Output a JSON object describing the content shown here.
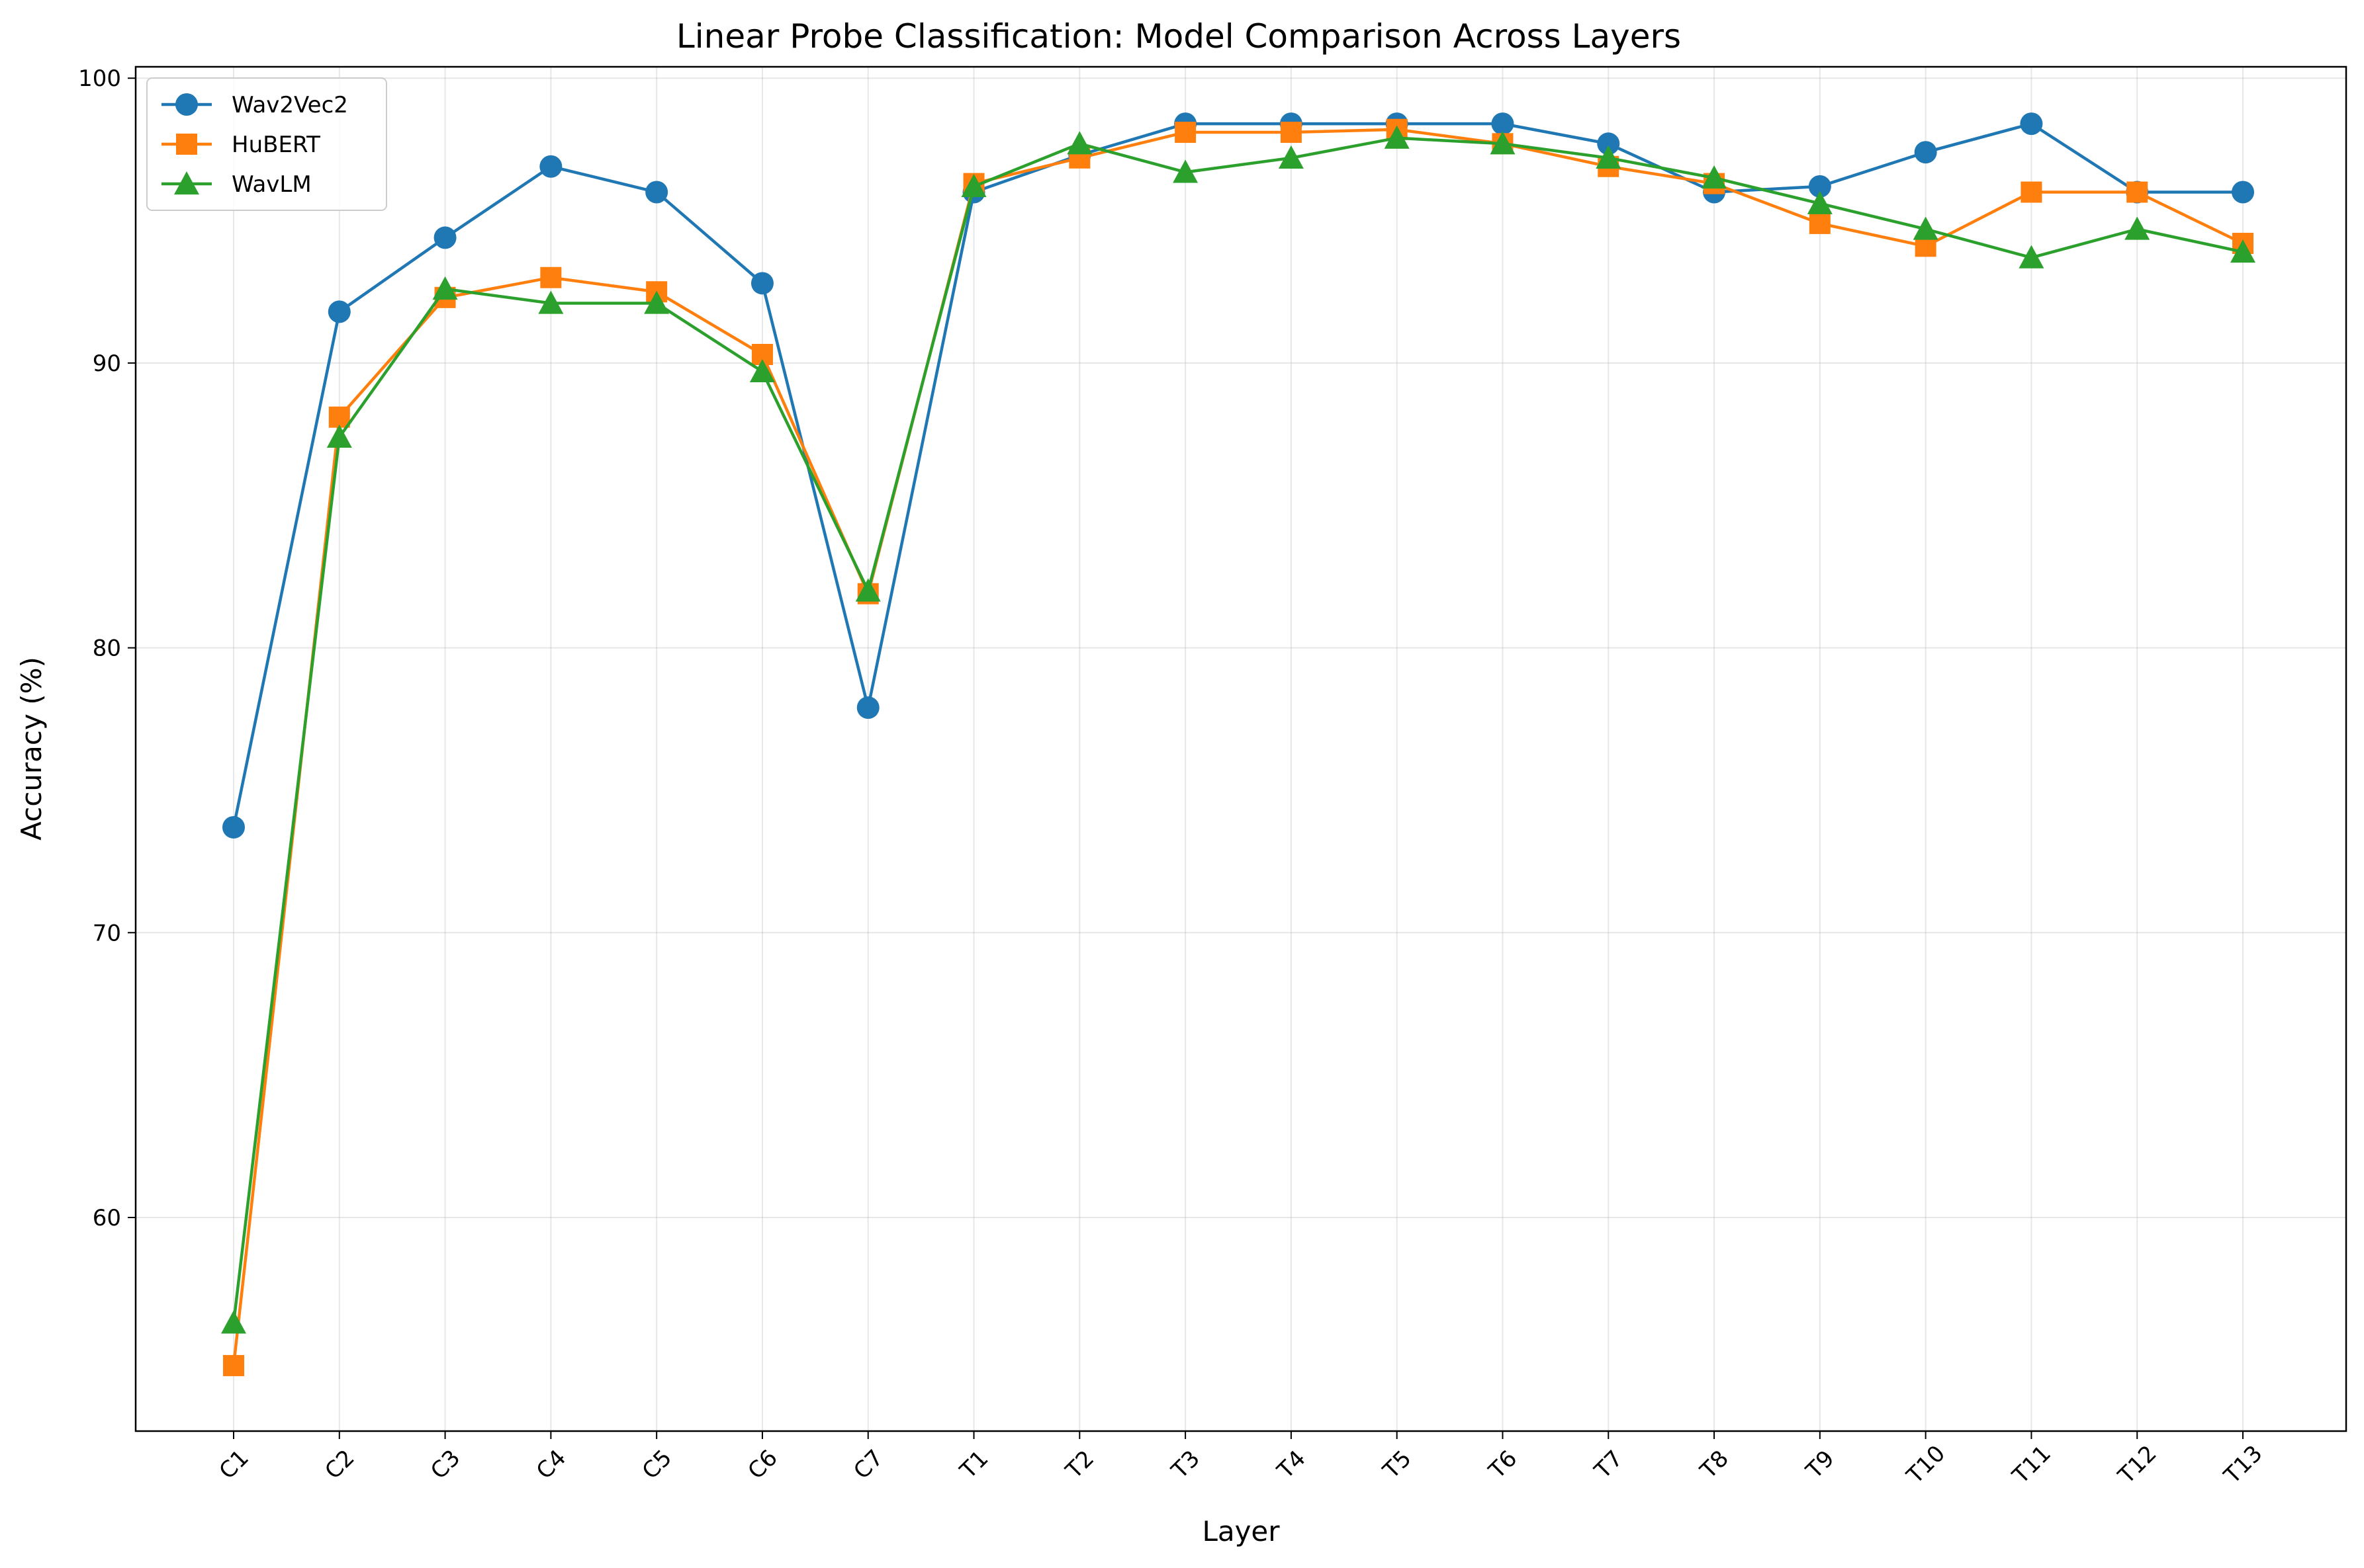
{
  "chart_data": {
    "type": "line",
    "title": "Linear Probe Classification: Model Comparison Across Layers",
    "xlabel": "Layer",
    "ylabel": "Accuracy (%)",
    "categories": [
      "C1",
      "C2",
      "C3",
      "C4",
      "C5",
      "C6",
      "C7",
      "T1",
      "T2",
      "T3",
      "T4",
      "T5",
      "T6",
      "T7",
      "T8",
      "T9",
      "T10",
      "T11",
      "T12",
      "T13"
    ],
    "ylim": [
      52.5,
      100.4
    ],
    "yticks": [
      60,
      70,
      80,
      90,
      100
    ],
    "grid": true,
    "legend_position": "top-left",
    "series": [
      {
        "name": "Wav2Vec2",
        "color": "#1f77b4",
        "marker": "circle",
        "values": [
          73.7,
          91.8,
          94.4,
          96.9,
          96.0,
          92.8,
          77.9,
          96.0,
          97.3,
          98.4,
          98.4,
          98.4,
          98.4,
          97.7,
          96.0,
          96.2,
          97.4,
          98.4,
          96.0,
          96.0
        ]
      },
      {
        "name": "HuBERT",
        "color": "#ff7f0e",
        "marker": "square",
        "values": [
          54.8,
          88.1,
          92.3,
          93.0,
          92.5,
          90.3,
          81.9,
          96.3,
          97.2,
          98.1,
          98.1,
          98.2,
          97.7,
          96.9,
          96.3,
          94.9,
          94.1,
          96.0,
          96.0,
          94.2
        ]
      },
      {
        "name": "WavLM",
        "color": "#2ca02c",
        "marker": "triangle",
        "values": [
          56.3,
          87.4,
          92.6,
          92.1,
          92.1,
          89.7,
          82.0,
          96.2,
          97.7,
          96.7,
          97.2,
          97.9,
          97.7,
          97.2,
          96.5,
          95.6,
          94.7,
          93.7,
          94.7,
          93.9
        ]
      }
    ]
  }
}
